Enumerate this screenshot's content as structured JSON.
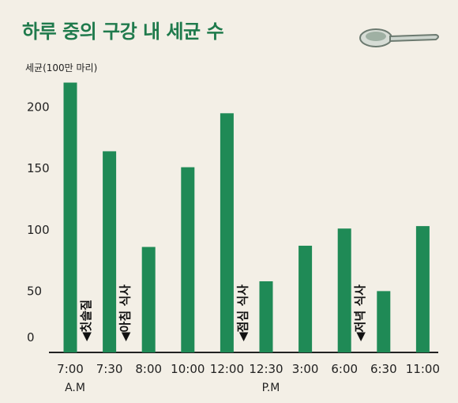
{
  "title": "하루 중의 구강 내 세균 수",
  "chart_data": {
    "type": "bar",
    "ylabel": "세균(100만 마리)",
    "categories": [
      "7:00",
      "7:30",
      "8:00",
      "10:00",
      "12:00",
      "12:30",
      "3:00",
      "6:00",
      "6:30",
      "11:00"
    ],
    "values": [
      220,
      164,
      86,
      151,
      195,
      58,
      87,
      101,
      50,
      103
    ],
    "yticks": [
      0,
      50,
      100,
      150,
      200
    ],
    "ylim": [
      0,
      230
    ],
    "grid": false,
    "bar_color": "#1f8a56",
    "period_labels": [
      {
        "text": "A.M",
        "category_index": 0
      },
      {
        "text": "P.M",
        "category_index": 5
      }
    ],
    "annotations": [
      {
        "text": "◀칫솔질",
        "category_index": 0
      },
      {
        "text": "◀아침 식사",
        "category_index": 1
      },
      {
        "text": "◀점심 식사",
        "category_index": 4
      },
      {
        "text": "◀저녁 식사",
        "category_index": 7
      }
    ]
  }
}
